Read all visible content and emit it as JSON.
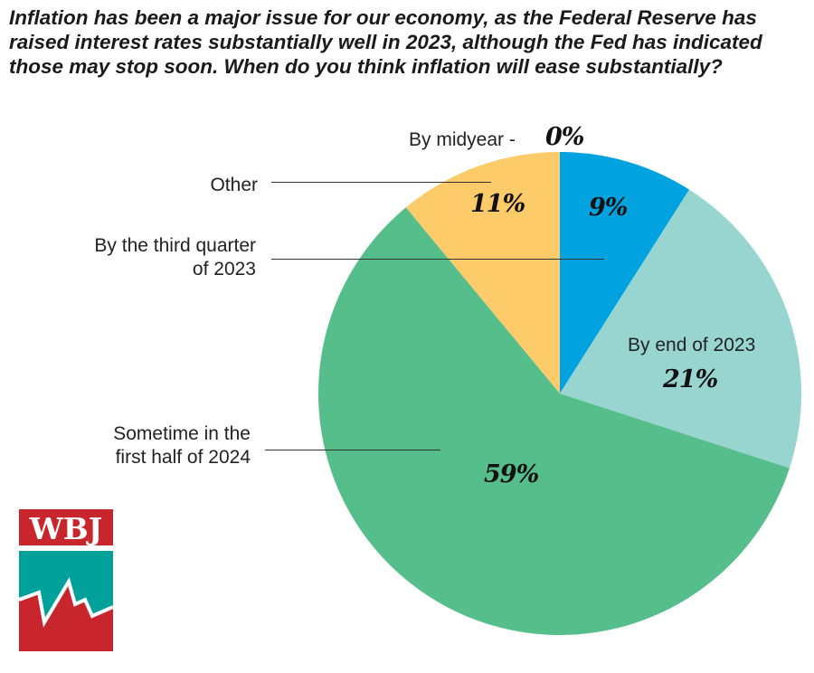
{
  "chart_data": {
    "type": "pie",
    "title": "Inflation has been a major issue for our economy, as the Federal Reserve has raised interest rates substantially well in 2023, although the Fed has indicated those may stop soon. When do you think inflation will ease substantially?",
    "slices": [
      {
        "label": "By midyear",
        "value": 0,
        "display": "0%",
        "color": "#ffffff"
      },
      {
        "label": "By the third quarter of 2023",
        "value": 9,
        "display": "9%",
        "color": "#00a3df"
      },
      {
        "label": "By end of 2023",
        "value": 21,
        "display": "21%",
        "color": "#98d5d1"
      },
      {
        "label": "Sometime in the first half of 2024",
        "value": 59,
        "display": "59%",
        "color": "#56be8b"
      },
      {
        "label": "Other",
        "value": 11,
        "display": "11%",
        "color": "#fecb6b"
      }
    ],
    "label_texts": {
      "midyear": "By midyear -",
      "other": "Other",
      "third_q_1": "By the third quarter",
      "third_q_2": "of 2023",
      "end_2023": "By end of 2023",
      "h1_2024_1": "Sometime in the",
      "h1_2024_2": "first half of 2024"
    }
  },
  "logo": {
    "text": "WBJ",
    "red": "#c8252c",
    "teal": "#00a19a"
  }
}
